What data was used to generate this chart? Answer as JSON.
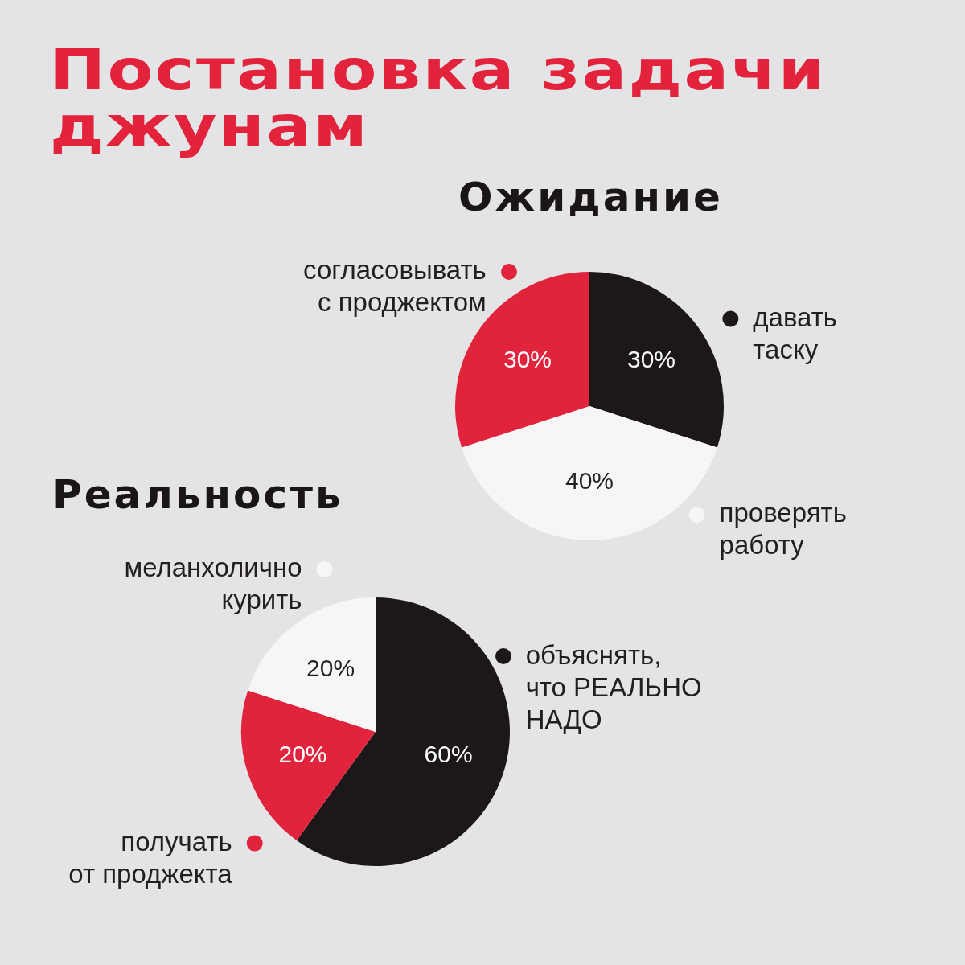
{
  "chart_data": [
    {
      "type": "other",
      "title": "Постановка задачи джунам"
    },
    {
      "type": "pie",
      "title": "Ожидание",
      "categories": [
        "давать таску",
        "проверять работу",
        "согласовывать с проджектом"
      ],
      "values": [
        30,
        40,
        30
      ],
      "colors": [
        "#1c1719",
        "#f7f6f6",
        "#e1243b"
      ],
      "value_labels": [
        "30%",
        "40%",
        "30%"
      ],
      "legend": "right"
    },
    {
      "type": "pie",
      "title": "Реальность",
      "categories": [
        "объяснять, что РЕАЛЬНО НАДО",
        "получать от проджекта",
        "меланхолично курить"
      ],
      "values": [
        60,
        20,
        20
      ],
      "colors": [
        "#1c1719",
        "#e1243b",
        "#f7f6f6"
      ],
      "value_labels": [
        "60%",
        "20%",
        "20%"
      ],
      "legend": "left"
    }
  ]
}
